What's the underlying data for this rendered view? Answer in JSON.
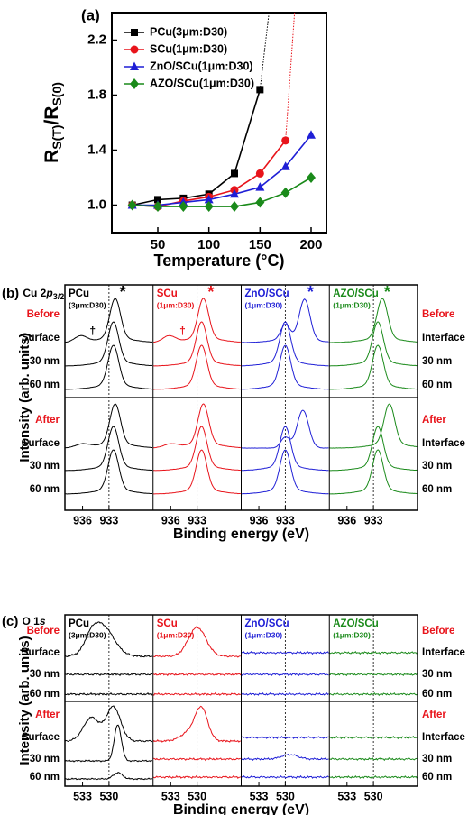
{
  "chart_data": {
    "type": "line",
    "panel_label": "(a)",
    "ylabel_parts": [
      "R",
      "S(T)",
      "/R",
      "S(0)"
    ],
    "xlabel": "Temperature (°C)",
    "x": [
      25,
      50,
      75,
      100,
      125,
      150,
      175,
      200
    ],
    "series": [
      {
        "name": "PCu(3μm:D30)",
        "color": "#000000",
        "marker": "square",
        "values": [
          1.0,
          1.04,
          1.05,
          1.08,
          1.23,
          1.84,
          null,
          null
        ]
      },
      {
        "name": "SCu(1μm:D30)",
        "color": "#e8141b",
        "marker": "circle",
        "values": [
          1.0,
          0.99,
          1.03,
          1.06,
          1.11,
          1.23,
          1.47,
          null
        ]
      },
      {
        "name": "ZnO/SCu(1μm:D30)",
        "color": "#1f1fd6",
        "marker": "triangle",
        "values": [
          1.0,
          1.0,
          1.02,
          1.04,
          1.08,
          1.13,
          1.28,
          1.51
        ]
      },
      {
        "name": "AZO/SCu(1μm:D30)",
        "color": "#1a8a1a",
        "marker": "diamond",
        "values": [
          1.0,
          0.99,
          0.99,
          0.99,
          0.99,
          1.02,
          1.09,
          1.2
        ]
      }
    ],
    "xlim": [
      5,
      215
    ],
    "xticks": [
      50,
      100,
      150,
      200
    ],
    "ylim": [
      0.8,
      2.4
    ],
    "yticks": [
      {
        "value": 1,
        "label": "1.0"
      },
      1.4,
      1.8,
      2.2
    ],
    "legend": "upper left"
  },
  "panel_b": {
    "label": "(b)",
    "title_parts": [
      "Cu 2",
      "p",
      "3/2"
    ],
    "columns": [
      {
        "name": "PCu",
        "note": "(3μm:D30)",
        "color": "#000000"
      },
      {
        "name": "SCu",
        "note": "(1μm:D30)",
        "color": "#e8141b"
      },
      {
        "name": "ZnO/SCu",
        "note": "(1μm:D30)",
        "color": "#1f1fd6"
      },
      {
        "name": "AZO/SCu",
        "note": "(1μm:D30)",
        "color": "#1a8a1a"
      }
    ],
    "left_rows": [
      "Before",
      "Surface",
      "30 nm",
      "60 nm",
      "After",
      "Surface",
      "30 nm",
      "60 nm"
    ],
    "right_rows": [
      "Before",
      "Interface",
      "30 nm",
      "60 nm",
      "After",
      "Interface",
      "30 nm",
      "60 nm"
    ],
    "xticks": [
      "936",
      "933"
    ],
    "star": "*",
    "dagger": "†",
    "xlabel": "Binding energy (eV)",
    "ylabel": "Intensity (arb. units)"
  },
  "panel_c": {
    "label": "(c)",
    "title_parts": [
      "O 1",
      "s"
    ],
    "columns": [
      {
        "name": "PCu",
        "note": "(3μm:D30)",
        "color": "#000000"
      },
      {
        "name": "SCu",
        "note": "(1μm:D30)",
        "color": "#e8141b"
      },
      {
        "name": "ZnO/SCu",
        "note": "(1μm:D30)",
        "color": "#1f1fd6"
      },
      {
        "name": "AZO/SCu",
        "note": "(1μm:D30)",
        "color": "#1a8a1a"
      }
    ],
    "left_rows": [
      "Before",
      "Surface",
      "30 nm",
      "60 nm",
      "After",
      "Surface",
      "30 nm",
      "60 nm"
    ],
    "right_rows": [
      "Before",
      "Interface",
      "30 nm",
      "60 nm",
      "After",
      "Interface",
      "30 nm",
      "60 nm"
    ],
    "xticks": [
      "533",
      "530"
    ],
    "xlabel": "Binding energy (eV)",
    "ylabel": "Intensity (arb. units)"
  }
}
